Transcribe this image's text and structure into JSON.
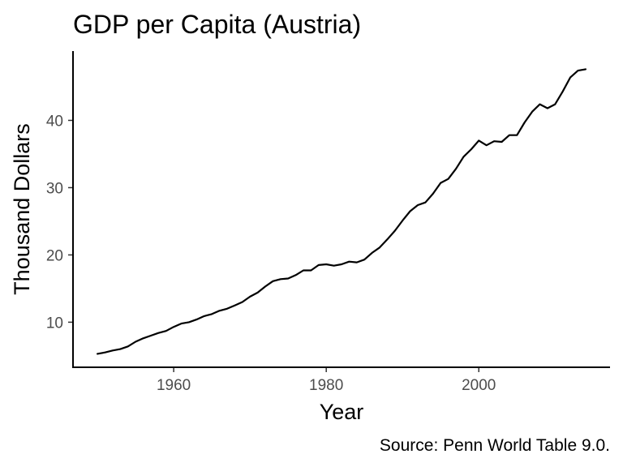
{
  "chart_data": {
    "type": "line",
    "title": "GDP per Capita (Austria)",
    "xlabel": "Year",
    "ylabel": "Thousand Dollars",
    "caption": "Source: Penn World Table 9.0.",
    "xlim": [
      1946.8,
      2017.2
    ],
    "ylim": [
      3.3,
      50.3
    ],
    "x_ticks": [
      1960,
      1980,
      2000
    ],
    "y_ticks": [
      10,
      20,
      30,
      40
    ],
    "grid": false,
    "legend": "none",
    "line_color": "#000000",
    "series": [
      {
        "x": [
          1950,
          1951,
          1952,
          1953,
          1954,
          1955,
          1956,
          1957,
          1958,
          1959,
          1960,
          1961,
          1962,
          1963,
          1964,
          1965,
          1966,
          1967,
          1968,
          1969,
          1970,
          1971,
          1972,
          1973,
          1974,
          1975,
          1976,
          1977,
          1978,
          1979,
          1980,
          1981,
          1982,
          1983,
          1984,
          1985,
          1986,
          1987,
          1988,
          1989,
          1990,
          1991,
          1992,
          1993,
          1994,
          1995,
          1996,
          1997,
          1998,
          1999,
          2000,
          2001,
          2002,
          2003,
          2004,
          2005,
          2006,
          2007,
          2008,
          2009,
          2010,
          2011,
          2012,
          2013,
          2014
        ],
        "values": [
          5.3,
          5.5,
          5.8,
          6.0,
          6.4,
          7.1,
          7.6,
          8.0,
          8.4,
          8.7,
          9.3,
          9.8,
          10.0,
          10.4,
          10.9,
          11.2,
          11.7,
          12.0,
          12.5,
          13.0,
          13.8,
          14.4,
          15.3,
          16.1,
          16.4,
          16.5,
          17.0,
          17.7,
          17.7,
          18.5,
          18.6,
          18.4,
          18.6,
          19.0,
          18.9,
          19.3,
          20.3,
          21.1,
          22.3,
          23.6,
          25.1,
          26.5,
          27.4,
          27.8,
          29.1,
          30.7,
          31.3,
          32.8,
          34.6,
          35.7,
          37.0,
          36.3,
          36.9,
          36.8,
          37.8,
          37.8,
          39.7,
          41.3,
          42.4,
          41.8,
          42.4,
          44.3,
          46.4,
          47.4,
          47.6
        ]
      }
    ]
  }
}
